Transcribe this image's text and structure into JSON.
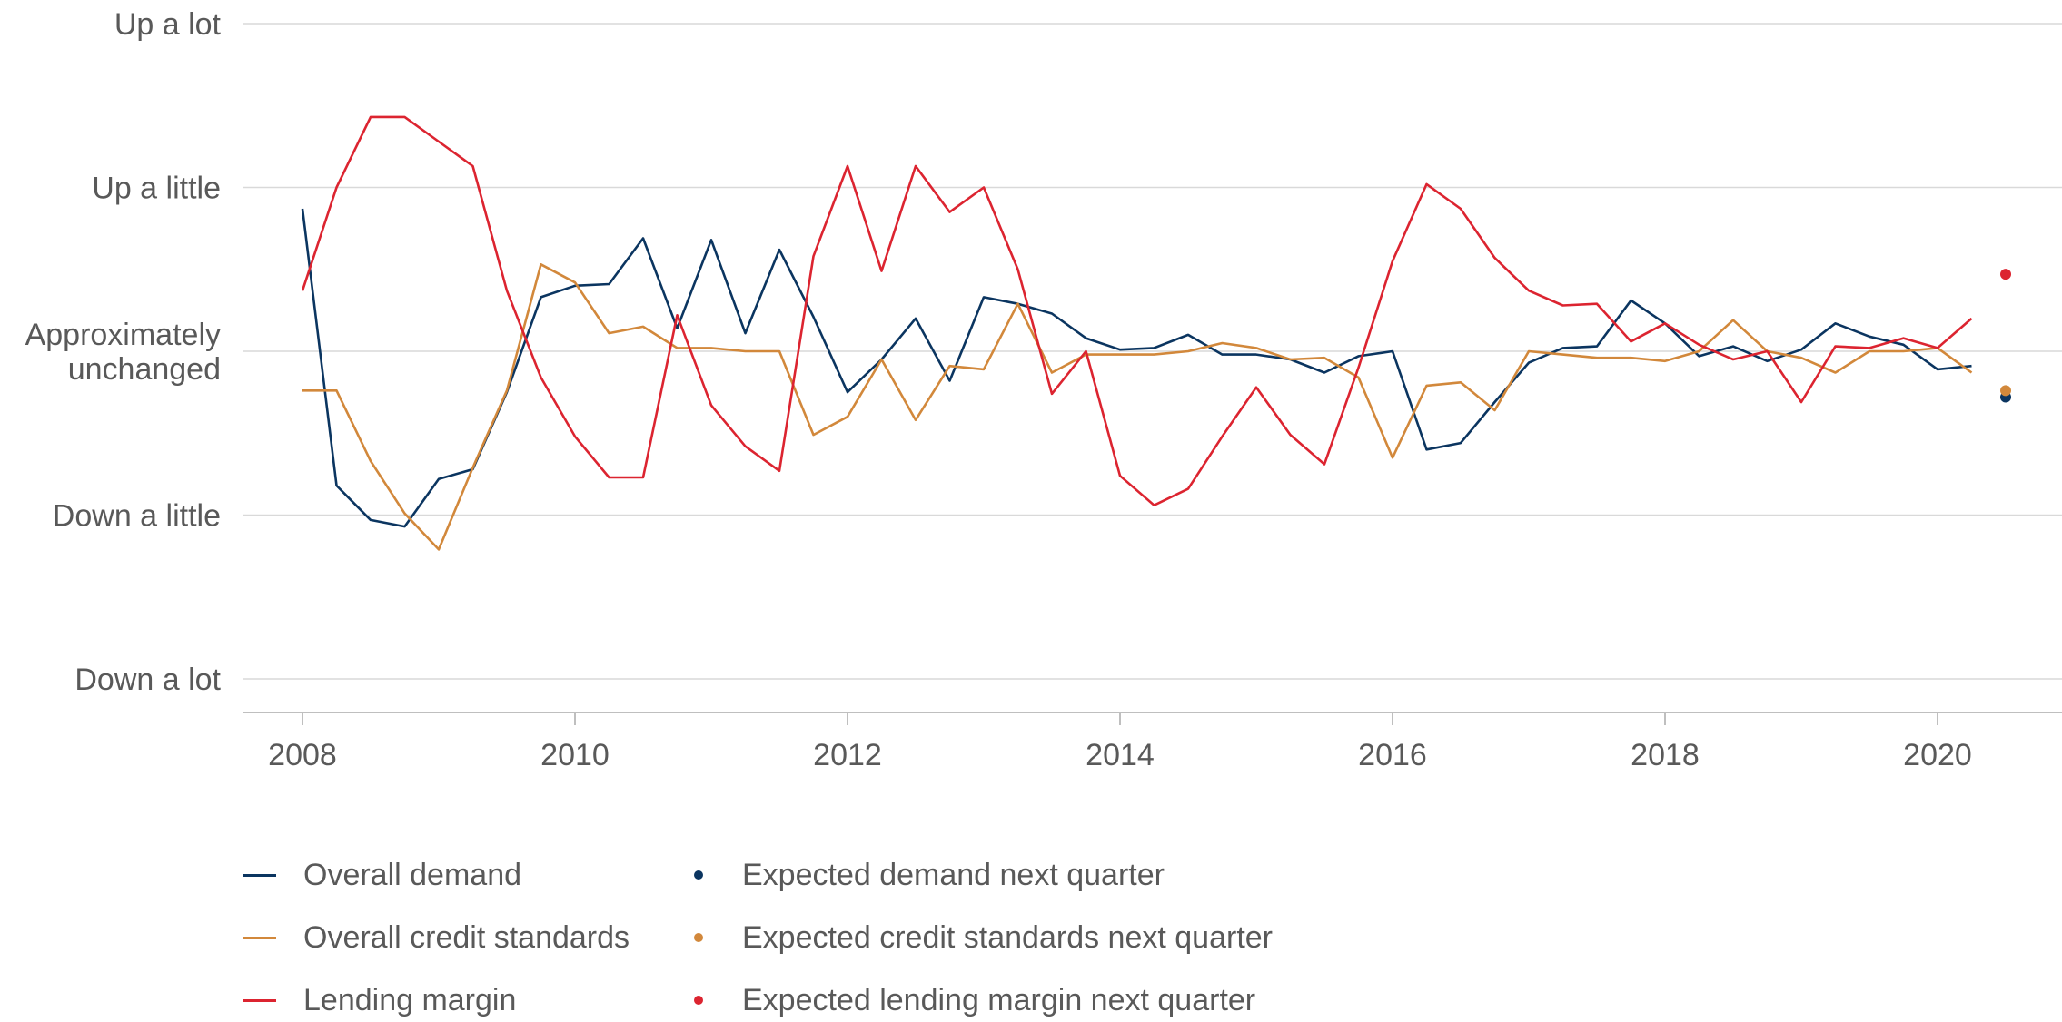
{
  "chart_data": {
    "type": "line",
    "y_levels": [
      {
        "label_lines": [
          "Up a lot"
        ],
        "value": 2
      },
      {
        "label_lines": [
          "Up a little"
        ],
        "value": 1
      },
      {
        "label_lines": [
          "Approximately",
          "unchanged"
        ],
        "value": 0
      },
      {
        "label_lines": [
          "Down a little"
        ],
        "value": -1
      },
      {
        "label_lines": [
          "Down a lot"
        ],
        "value": -2
      }
    ],
    "ylim": [
      -2,
      2
    ],
    "xlim": [
      2008,
      2020.75
    ],
    "x_ticks": [
      "2008",
      "2010",
      "2012",
      "2014",
      "2016",
      "2018",
      "2020"
    ],
    "grid": true,
    "legend_position": "bottom",
    "x": [
      2008.0,
      2008.25,
      2008.5,
      2008.75,
      2009.0,
      2009.25,
      2009.5,
      2009.75,
      2010.0,
      2010.25,
      2010.5,
      2010.75,
      2011.0,
      2011.25,
      2011.5,
      2011.75,
      2012.0,
      2012.25,
      2012.5,
      2012.75,
      2013.0,
      2013.25,
      2013.5,
      2013.75,
      2014.0,
      2014.25,
      2014.5,
      2014.75,
      2015.0,
      2015.25,
      2015.5,
      2015.75,
      2016.0,
      2016.25,
      2016.5,
      2016.75,
      2017.0,
      2017.25,
      2017.5,
      2017.75,
      2018.0,
      2018.25,
      2018.5,
      2018.75,
      2019.0,
      2019.25,
      2019.5,
      2019.75,
      2020.0,
      2020.25
    ],
    "series": [
      {
        "name": "Overall demand",
        "color": "#0b3560",
        "values": [
          0.87,
          -0.82,
          -1.03,
          -1.07,
          -0.78,
          -0.72,
          -0.25,
          0.33,
          0.4,
          0.41,
          0.69,
          0.14,
          0.68,
          0.11,
          0.62,
          0.21,
          -0.25,
          -0.05,
          0.2,
          -0.18,
          0.33,
          0.29,
          0.23,
          0.08,
          0.01,
          0.02,
          0.1,
          -0.02,
          -0.02,
          -0.05,
          -0.13,
          -0.03,
          0.0,
          -0.6,
          -0.56,
          -0.31,
          -0.07,
          0.02,
          0.03,
          0.31,
          0.17,
          -0.03,
          0.03,
          -0.06,
          0.01,
          0.17,
          0.09,
          0.04,
          -0.11,
          -0.09
        ]
      },
      {
        "name": "Overall credit standards",
        "color": "#d2883b",
        "values": [
          -0.24,
          -0.24,
          -0.67,
          -0.99,
          -1.21,
          -0.71,
          -0.24,
          0.53,
          0.42,
          0.11,
          0.15,
          0.02,
          0.02,
          0.0,
          0.0,
          -0.51,
          -0.4,
          -0.05,
          -0.42,
          -0.09,
          -0.11,
          0.29,
          -0.13,
          -0.02,
          -0.02,
          -0.02,
          0.0,
          0.05,
          0.02,
          -0.05,
          -0.04,
          -0.16,
          -0.65,
          -0.21,
          -0.19,
          -0.36,
          0.0,
          -0.02,
          -0.04,
          -0.04,
          -0.06,
          0.0,
          0.19,
          0.0,
          -0.04,
          -0.13,
          0.0,
          0.0,
          0.02,
          -0.13
        ]
      },
      {
        "name": "Lending margin",
        "color": "#dc2430",
        "values": [
          0.37,
          1.0,
          1.43,
          1.43,
          1.28,
          1.13,
          0.37,
          -0.16,
          -0.52,
          -0.77,
          -0.77,
          0.22,
          -0.33,
          -0.58,
          -0.73,
          0.58,
          1.13,
          0.49,
          1.13,
          0.85,
          1.0,
          0.5,
          -0.26,
          0.0,
          -0.76,
          -0.94,
          -0.84,
          -0.52,
          -0.22,
          -0.51,
          -0.69,
          -0.1,
          0.55,
          1.02,
          0.87,
          0.57,
          0.37,
          0.28,
          0.29,
          0.06,
          0.17,
          0.04,
          -0.05,
          0.0,
          -0.31,
          0.03,
          0.02,
          0.08,
          0.02,
          0.2
        ]
      }
    ],
    "expected_points": [
      {
        "name": "Expected demand next quarter",
        "color": "#0b3560",
        "x": 2020.5,
        "value": -0.28
      },
      {
        "name": "Expected credit standards next quarter",
        "color": "#d2883b",
        "x": 2020.5,
        "value": -0.24
      },
      {
        "name": "Expected lending margin next quarter",
        "color": "#dc2430",
        "x": 2020.5,
        "value": 0.47
      }
    ]
  }
}
